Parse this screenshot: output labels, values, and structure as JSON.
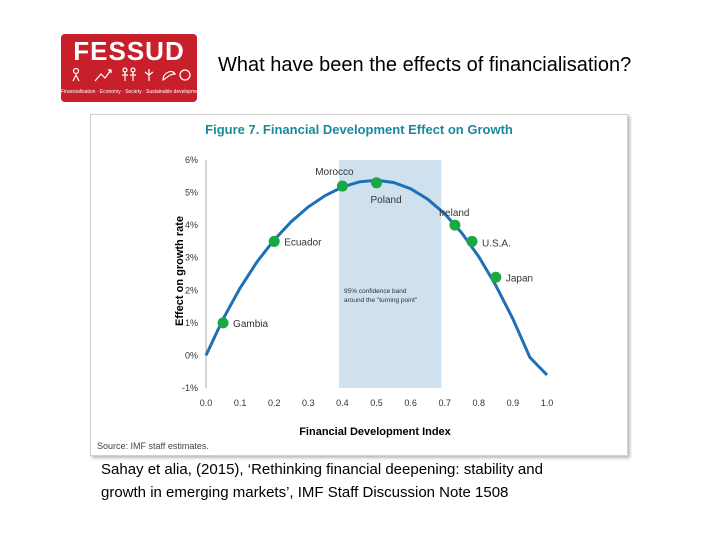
{
  "logo": {
    "text": "FESSUD",
    "tagline": "Financialisation · Economy · Society · Sustainable development"
  },
  "slide": {
    "title": "What have been the effects of financialisation?"
  },
  "citation": {
    "line1": "Sahay et alia, (2015), ‘Rethinking financial deepening: stability and",
    "line2": "growth in emerging markets’, IMF Staff Discussion Note 1508"
  },
  "colors": {
    "brand_red": "#c8202a",
    "curve": "#1f6fb5",
    "points": "#1aa842",
    "band": "#cfe0ee",
    "title_teal": "#1a8a9b"
  },
  "chart_data": {
    "type": "line",
    "title": "Figure 7. Financial Development Effect on Growth",
    "xlabel": "Financial Development Index",
    "ylabel": "Effect on growth rate",
    "xlim": [
      0.0,
      1.0
    ],
    "ylim": [
      -1,
      6
    ],
    "x_ticks": [
      "0.0",
      "0.1",
      "0.2",
      "0.3",
      "0.4",
      "0.5",
      "0.6",
      "0.7",
      "0.8",
      "0.9",
      "1.0"
    ],
    "y_ticks": [
      "-1%",
      "0%",
      "1%",
      "2%",
      "3%",
      "4%",
      "5%",
      "6%"
    ],
    "curve": {
      "x": [
        0.0,
        0.05,
        0.1,
        0.15,
        0.2,
        0.25,
        0.3,
        0.35,
        0.4,
        0.45,
        0.5,
        0.55,
        0.6,
        0.65,
        0.7,
        0.75,
        0.8,
        0.85,
        0.9,
        0.95,
        1.0
      ],
      "y": [
        0.0,
        1.12,
        2.07,
        2.88,
        3.55,
        4.11,
        4.56,
        4.91,
        5.17,
        5.33,
        5.38,
        5.31,
        5.12,
        4.8,
        4.35,
        3.76,
        3.03,
        2.15,
        1.12,
        -0.06,
        -0.6
      ]
    },
    "points": [
      {
        "label": "Gambia",
        "x": 0.05,
        "y": 1.0
      },
      {
        "label": "Ecuador",
        "x": 0.2,
        "y": 3.5
      },
      {
        "label": "Morocco",
        "x": 0.4,
        "y": 5.2
      },
      {
        "label": "Poland",
        "x": 0.5,
        "y": 5.3
      },
      {
        "label": "Ireland",
        "x": 0.73,
        "y": 4.0
      },
      {
        "label": "U.S.A.",
        "x": 0.78,
        "y": 3.5
      },
      {
        "label": "Japan",
        "x": 0.85,
        "y": 2.4
      }
    ],
    "band": {
      "x0": 0.39,
      "x1": 0.69,
      "label_line1": "95% confidence band",
      "label_line2": "around the \"turning point\""
    },
    "source": "Source: IMF staff estimates."
  }
}
